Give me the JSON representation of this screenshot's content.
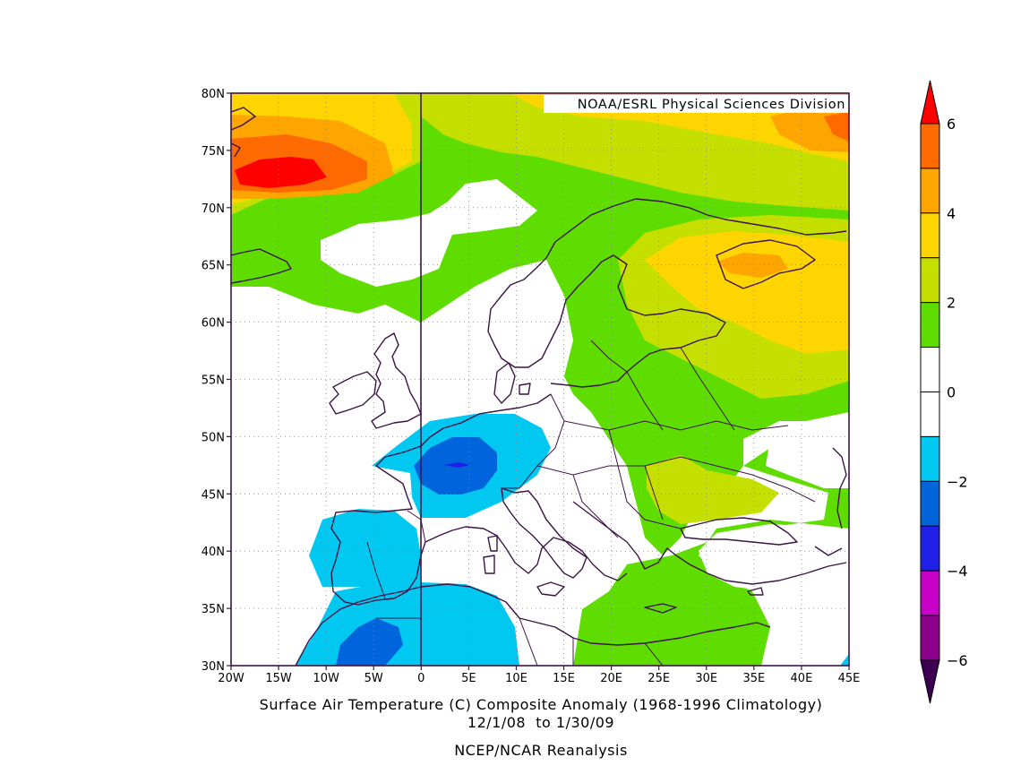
{
  "credit": "NOAA/ESRL Physical Sciences Division",
  "title_line1": "Surface Air Temperature (C) Composite Anomaly (1968-1996 Climatology)",
  "title_line2": "12/1/08  to 1/30/09",
  "title_line3": "NCEP/NCAR Reanalysis",
  "lat_labels": [
    "30N",
    "35N",
    "40N",
    "45N",
    "50N",
    "55N",
    "60N",
    "65N",
    "70N",
    "75N",
    "80N"
  ],
  "lon_labels": [
    "20W",
    "15W",
    "10W",
    "5W",
    "0",
    "5E",
    "10E",
    "15E",
    "20E",
    "25E",
    "30E",
    "35E",
    "40E",
    "45E"
  ],
  "colorbar": {
    "labels": [
      "6",
      "4",
      "2",
      "0",
      "−2",
      "−4",
      "−6"
    ],
    "colors": [
      "#ff0000",
      "#ff6a00",
      "#ffa500",
      "#ffd500",
      "#c5e000",
      "#5fdc00",
      "#ffffff",
      "#ffffff",
      "#00c8f0",
      "#0064dc",
      "#2020e8",
      "#c800c8",
      "#8c008c",
      "#3c0050"
    ]
  },
  "legend_colors": {
    "plus_1_2": "#5fdc00",
    "plus_2_3": "#c5e000",
    "plus_3_4": "#ffd500",
    "plus_4_5": "#ffa500",
    "plus_5_6": "#ff6a00",
    "plus_6": "#ff0000",
    "minus_1_2": "#00c8f0",
    "minus_2_3": "#0064dc",
    "minus_3_4": "#2020e8",
    "coast": "#3c1446"
  }
}
